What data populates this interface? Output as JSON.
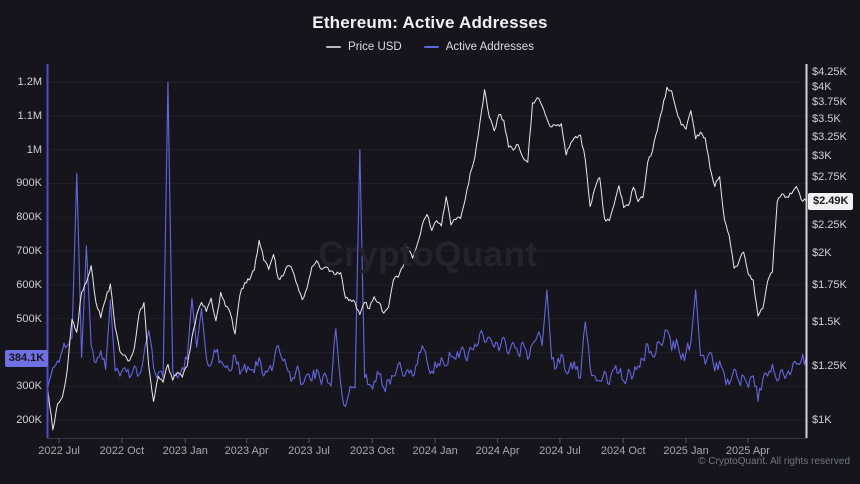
{
  "header": {
    "title": "Ethereum: Active Addresses"
  },
  "legend": [
    {
      "label": "Price USD",
      "color": "#b9b9c1"
    },
    {
      "label": "Active Addresses",
      "color": "#6363e2"
    }
  ],
  "watermark": "CryptoQuant",
  "footer": "© CryptoQuant. All rights reserved",
  "colors": {
    "background": "#15151b",
    "gridline": "#1f1f26",
    "left_axis_line": "#4c4cd2",
    "right_axis_line": "#d4d4da",
    "bottom_axis_line": "#36363e",
    "tick_mark": "#55555e",
    "price_line": "#e9e9ec",
    "addresses_line": "#6565df",
    "left_badge_bg": "#7070e2",
    "left_badge_text": "#15151e",
    "right_badge_bg": "#f2f2f4",
    "right_badge_text": "#17171c"
  },
  "axes": {
    "left": {
      "ticks": [
        {
          "label": "1.2M",
          "value": 1200
        },
        {
          "label": "1.1M",
          "value": 1100
        },
        {
          "label": "1M",
          "value": 1000
        },
        {
          "label": "900K",
          "value": 900
        },
        {
          "label": "800K",
          "value": 800
        },
        {
          "label": "700K",
          "value": 700
        },
        {
          "label": "600K",
          "value": 600
        },
        {
          "label": "500K",
          "value": 500
        },
        {
          "label": "300K",
          "value": 300
        },
        {
          "label": "200K",
          "value": 200
        }
      ],
      "badge": {
        "label": "384.1K",
        "value": 384.1
      }
    },
    "right": {
      "ticks": [
        {
          "label": "$4.25K",
          "value": 4250
        },
        {
          "label": "$4K",
          "value": 4000
        },
        {
          "label": "$3.75K",
          "value": 3750
        },
        {
          "label": "$3.5K",
          "value": 3500
        },
        {
          "label": "$3.25K",
          "value": 3250
        },
        {
          "label": "$3K",
          "value": 3000
        },
        {
          "label": "$2.75K",
          "value": 2750
        },
        {
          "label": "$2.25K",
          "value": 2250
        },
        {
          "label": "$2K",
          "value": 2000
        },
        {
          "label": "$1.75K",
          "value": 1750
        },
        {
          "label": "$1.5K",
          "value": 1500
        },
        {
          "label": "$1.25K",
          "value": 1250
        },
        {
          "label": "$1K",
          "value": 1000
        }
      ],
      "badge": {
        "label": "$2.49K",
        "value": 2490
      }
    },
    "x": {
      "ticks": [
        {
          "label": "2022 Jul",
          "week": 2.3
        },
        {
          "label": "2022 Oct",
          "week": 15.4
        },
        {
          "label": "2023 Jan",
          "week": 28.6
        },
        {
          "label": "2023 Apr",
          "week": 41.4
        },
        {
          "label": "2023 Jul",
          "week": 54.4
        },
        {
          "label": "2023 Oct",
          "week": 67.6
        },
        {
          "label": "2024 Jan",
          "week": 80.7
        },
        {
          "label": "2024 Apr",
          "week": 93.7
        },
        {
          "label": "2024 Jul",
          "week": 106.7
        },
        {
          "label": "2024 Oct",
          "week": 119.9
        },
        {
          "label": "2025 Jan",
          "week": 133.0
        },
        {
          "label": "2025 Apr",
          "week": 145.9
        }
      ]
    }
  },
  "chart_data": {
    "type": "line",
    "title": "Ethereum: Active Addresses",
    "x_start": "2022-06-15",
    "x_interval": "weekly",
    "x_total_weeks": 158,
    "grid": "horizontal-faint",
    "legend_position": "top-center",
    "series": [
      {
        "name": "Price USD",
        "axis": "right",
        "unit": "USD",
        "scale": "log",
        "range": [
          1000,
          4250
        ],
        "last_value_label": "$2.49K",
        "values": [
          1130,
          960,
          1070,
          1100,
          1230,
          1520,
          1440,
          1700,
          1770,
          1900,
          1630,
          1530,
          1650,
          1760,
          1470,
          1330,
          1310,
          1280,
          1350,
          1560,
          1630,
          1250,
          1080,
          1200,
          1170,
          1260,
          1180,
          1220,
          1195,
          1250,
          1410,
          1550,
          1630,
          1570,
          1660,
          1510,
          1700,
          1605,
          1560,
          1430,
          1680,
          1770,
          1790,
          1865,
          2110,
          1940,
          1870,
          1990,
          1800,
          1820,
          1900,
          1860,
          1750,
          1650,
          1730,
          1890,
          1940,
          1870,
          1890,
          1860,
          1830,
          1845,
          1660,
          1650,
          1630,
          1550,
          1630,
          1590,
          1670,
          1630,
          1560,
          1600,
          1790,
          1810,
          1890,
          2050,
          1960,
          2080,
          2250,
          2350,
          2200,
          2290,
          2240,
          2530,
          2250,
          2300,
          2310,
          2510,
          2790,
          2990,
          3430,
          3950,
          3520,
          3330,
          3560,
          3480,
          3110,
          3070,
          3140,
          2980,
          2920,
          3740,
          3820,
          3690,
          3500,
          3380,
          3400,
          3430,
          3010,
          3170,
          3250,
          3270,
          2950,
          2430,
          2620,
          2740,
          2310,
          2290,
          2450,
          2650,
          2420,
          2440,
          2630,
          2480,
          2520,
          2920,
          3060,
          3330,
          3620,
          3990,
          3930,
          3620,
          3410,
          3350,
          3620,
          3220,
          3310,
          3230,
          2850,
          2640,
          2750,
          2300,
          2150,
          1880,
          1930,
          2010,
          1830,
          1790,
          1540,
          1590,
          1780,
          1850,
          2480,
          2560,
          2530,
          2560,
          2640,
          2500,
          2490
        ]
      },
      {
        "name": "Active Addresses",
        "axis": "left",
        "unit": "addresses (thousands)",
        "scale": "linear",
        "range_thousands": [
          200,
          1200
        ],
        "last_value_label": "384.1K",
        "values": [
          300,
          355,
          375,
          405,
          420,
          445,
          930,
          385,
          715,
          420,
          370,
          405,
          350,
          555,
          345,
          330,
          355,
          325,
          360,
          335,
          395,
          465,
          355,
          340,
          325,
          1200,
          345,
          325,
          355,
          380,
          560,
          415,
          530,
          385,
          365,
          400,
          375,
          355,
          345,
          390,
          335,
          365,
          350,
          340,
          385,
          330,
          350,
          365,
          420,
          375,
          345,
          325,
          360,
          305,
          335,
          315,
          350,
          305,
          330,
          300,
          470,
          310,
          240,
          300,
          295,
          1000,
          325,
          305,
          315,
          335,
          295,
          320,
          330,
          365,
          330,
          350,
          330,
          365,
          420,
          375,
          345,
          355,
          385,
          360,
          390,
          380,
          405,
          385,
          415,
          425,
          455,
          430,
          445,
          415,
          405,
          445,
          395,
          430,
          395,
          430,
          380,
          425,
          450,
          420,
          585,
          380,
          355,
          395,
          340,
          370,
          350,
          325,
          490,
          355,
          330,
          315,
          345,
          305,
          350,
          340,
          315,
          350,
          330,
          360,
          380,
          425,
          390,
          430,
          420,
          465,
          405,
          440,
          380,
          400,
          430,
          585,
          390,
          365,
          400,
          345,
          375,
          335,
          305,
          350,
          315,
          330,
          295,
          330,
          255,
          320,
          330,
          365,
          315,
          350,
          335,
          345,
          365,
          375,
          384.1
        ]
      }
    ]
  }
}
